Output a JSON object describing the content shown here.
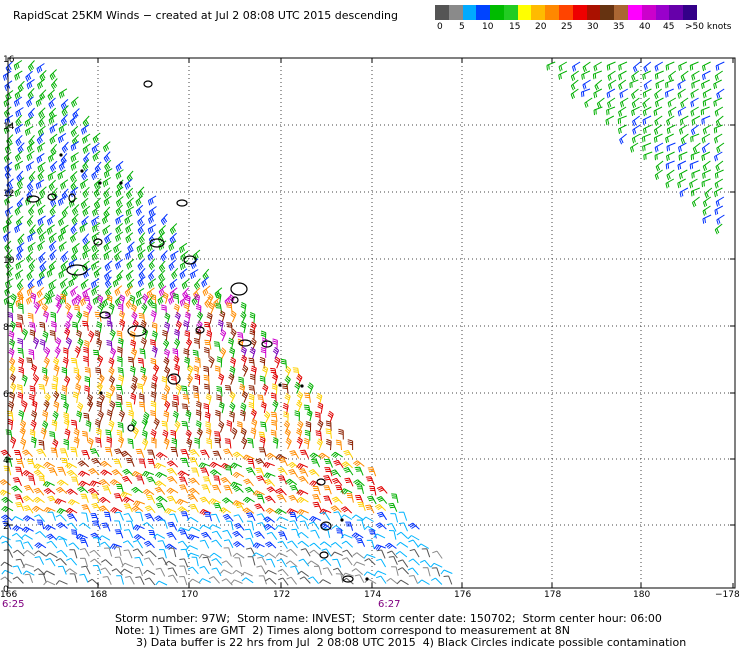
{
  "title": "RapidScat 25KM Winds − created at Jul  2 08:08 UTC 2015 descending",
  "speed_scale": {
    "colors": [
      "#555555",
      "#8a8a8a",
      "#00aaff",
      "#0044ff",
      "#00bb00",
      "#22cc22",
      "#ffff00",
      "#ffbb00",
      "#ff8800",
      "#ff4400",
      "#ee0000",
      "#aa1100",
      "#663311",
      "#aa6633",
      "#ff00ff",
      "#cc00cc",
      "#9900cc",
      "#6600aa",
      "#330088"
    ],
    "labels": [
      "0",
      "5",
      "10",
      "15",
      "20",
      "25",
      "30",
      "35",
      "40",
      "45",
      ">50 knots"
    ]
  },
  "map": {
    "y_ticks": [
      "16",
      "14",
      "12",
      "10",
      "8",
      "6",
      "4",
      "2",
      "0"
    ],
    "x_ticks": [
      "166",
      "168",
      "170",
      "172",
      "174",
      "176",
      "178",
      "180",
      "−178"
    ],
    "colors": {
      "grid": "#444444",
      "frame": "#000000",
      "land": "#000000",
      "calm": "#555555",
      "light": "#8a8a8a",
      "cyan": "#00b4ff",
      "blue": "#0030ff",
      "green": "#00b000",
      "yellow": "#ffd000",
      "orange": "#ff8c00",
      "red": "#e00000",
      "brown": "#8b2000",
      "magenta": "#cc00cc",
      "purple": "#7700bb"
    }
  },
  "times": {
    "left": "6:25",
    "middle": "6:27"
  },
  "notes": {
    "line1": "Storm number: 97W;  Storm name: INVEST;  Storm center date: 150702;  Storm center hour: 06:00",
    "line2": "Note: 1) Times are GMT  2) Times along bottom correspond to measurement at 8N",
    "line3": "      3) Data buffer is 22 hrs from Jul  2 08:08 UTC 2015  4) Black Circles indicate possible contamination"
  }
}
